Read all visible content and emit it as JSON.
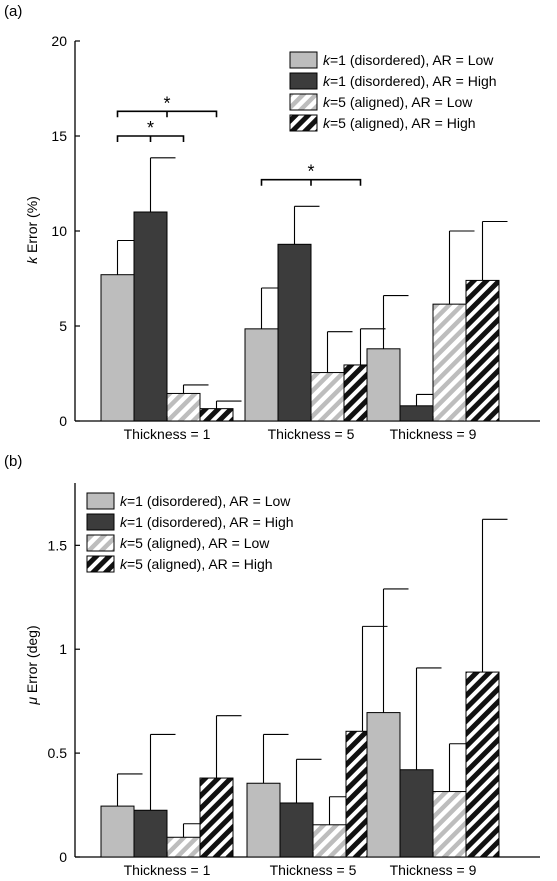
{
  "colors": {
    "light_gray": "#bdbdbd",
    "dark_gray": "#3c3c3c",
    "stroke": "#000000"
  },
  "legend_prefix": [
    "k",
    "k",
    "k",
    "k"
  ],
  "chart_data": [
    {
      "type": "bar",
      "panel_label": "(a)",
      "categories": [
        "Thickness = 1",
        "Thickness = 5",
        "Thickness = 9"
      ],
      "ylabel": "k Error (%)",
      "ylabel_italic": "k",
      "ylabel_rest": " Error (%)",
      "ylim": [
        0,
        20
      ],
      "yticks": [
        "0",
        "5",
        "10",
        "15",
        "20"
      ],
      "ytick_values": [
        0,
        5,
        10,
        15,
        20
      ],
      "legend_position": "top-right",
      "series": [
        {
          "name": "k=1 (disordered), AR = Low",
          "name_rest": "=1 (disordered), AR = Low",
          "style": "light",
          "values": [
            7.7,
            4.85,
            3.8
          ],
          "errors": [
            1.8,
            2.15,
            2.8
          ]
        },
        {
          "name": "k=1 (disordered), AR = High",
          "name_rest": "=1 (disordered), AR = High",
          "style": "dark",
          "values": [
            11.0,
            9.3,
            0.8
          ],
          "errors": [
            2.85,
            2.0,
            0.6
          ]
        },
        {
          "name": "k=5 (aligned), AR = Low",
          "name_rest": "=5 (aligned), AR = Low",
          "style": "light-hatch",
          "values": [
            1.45,
            2.55,
            6.15
          ],
          "errors": [
            0.45,
            2.15,
            3.85
          ]
        },
        {
          "name": "k=5 (aligned), AR = High",
          "name_rest": "=5 (aligned), AR = High",
          "style": "dark-hatch",
          "values": [
            0.65,
            2.95,
            7.4
          ],
          "errors": [
            0.4,
            1.9,
            3.1
          ]
        }
      ],
      "significance": [
        {
          "group": 0,
          "from": 0,
          "to": 2,
          "label": "*",
          "level": 15.0
        },
        {
          "group": 0,
          "from": 0,
          "to": 3,
          "label": "*",
          "level": 16.3
        },
        {
          "group": 1,
          "from": 2,
          "to": 3,
          "label": "*",
          "level": 12.7
        }
      ]
    },
    {
      "type": "bar",
      "panel_label": "(b)",
      "categories": [
        "Thickness = 1",
        "Thickness = 5",
        "Thickness = 9"
      ],
      "ylabel": "μ Error (deg)",
      "ylabel_italic": "μ",
      "ylabel_rest": " Error (deg)",
      "ylim": [
        0,
        1.8
      ],
      "yticks": [
        "0",
        "0.5",
        "1",
        "1.5"
      ],
      "ytick_values": [
        0,
        0.5,
        1,
        1.5
      ],
      "legend_position": "top-left",
      "series": [
        {
          "name": "k=1 (disordered), AR = Low",
          "name_rest": "=1 (disordered), AR = Low",
          "style": "light",
          "values": [
            0.245,
            0.355,
            0.695
          ],
          "errors": [
            0.155,
            0.235,
            0.595
          ]
        },
        {
          "name": "k=1 (disordered), AR = High",
          "name_rest": "=1 (disordered), AR = High",
          "style": "dark",
          "values": [
            0.225,
            0.26,
            0.42
          ],
          "errors": [
            0.365,
            0.21,
            0.49
          ]
        },
        {
          "name": "k=5 (aligned), AR = Low",
          "name_rest": "=5 (aligned), AR = Low",
          "style": "light-hatch",
          "values": [
            0.095,
            0.155,
            0.315
          ],
          "errors": [
            0.065,
            0.135,
            0.23
          ]
        },
        {
          "name": "k=5 (aligned), AR = High",
          "name_rest": "=5 (aligned), AR = High",
          "style": "dark-hatch",
          "values": [
            0.38,
            0.605,
            0.89
          ],
          "errors": [
            0.3,
            0.505,
            0.735
          ]
        }
      ]
    }
  ]
}
